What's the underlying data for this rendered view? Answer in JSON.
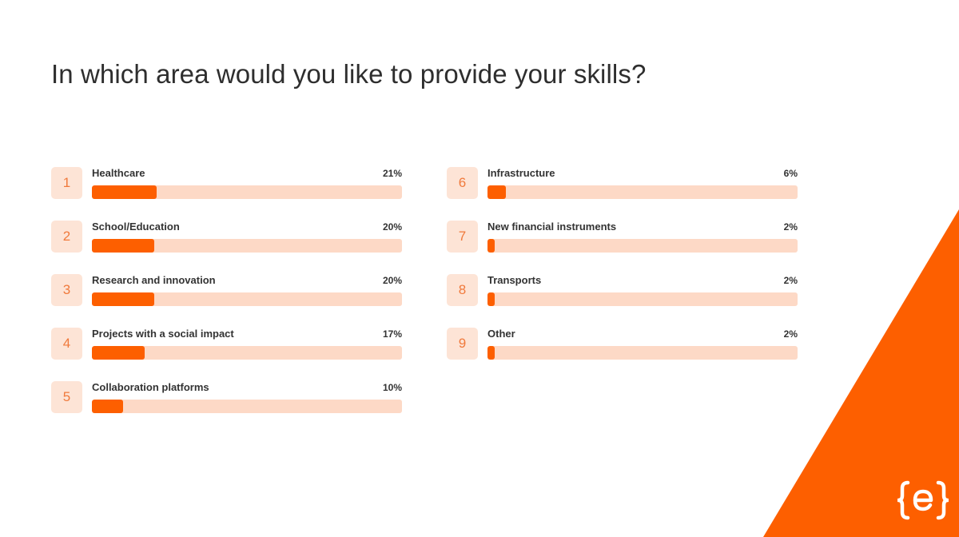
{
  "page": {
    "title": "In which area would you like to provide your skills?"
  },
  "colors": {
    "accent": "#fd5f00",
    "track": "#fdd9c6",
    "rank_bg": "#fde4d6",
    "rank_text": "#f07a3c",
    "corner_triangle": "#fd5f00",
    "logo": "#ffffff"
  },
  "logo": {
    "icon": "curly-brace-e-logo-icon"
  },
  "chart_data": {
    "type": "bar",
    "orientation": "horizontal",
    "title": "In which area would you like to provide your skills?",
    "xlim": [
      0,
      100
    ],
    "grid": false,
    "legend": "none",
    "items": [
      {
        "rank": "1",
        "label": "Healthcare",
        "value": 21,
        "display": "21%"
      },
      {
        "rank": "2",
        "label": "School/Education",
        "value": 20,
        "display": "20%"
      },
      {
        "rank": "3",
        "label": "Research and innovation",
        "value": 20,
        "display": "20%"
      },
      {
        "rank": "4",
        "label": "Projects with a social impact",
        "value": 17,
        "display": "17%"
      },
      {
        "rank": "5",
        "label": "Collaboration platforms",
        "value": 10,
        "display": "10%"
      },
      {
        "rank": "6",
        "label": "Infrastructure",
        "value": 6,
        "display": "6%"
      },
      {
        "rank": "7",
        "label": "New financial instruments",
        "value": 2,
        "display": "2%"
      },
      {
        "rank": "8",
        "label": "Transports",
        "value": 2,
        "display": "2%"
      },
      {
        "rank": "9",
        "label": "Other",
        "value": 2,
        "display": "2%"
      }
    ]
  }
}
